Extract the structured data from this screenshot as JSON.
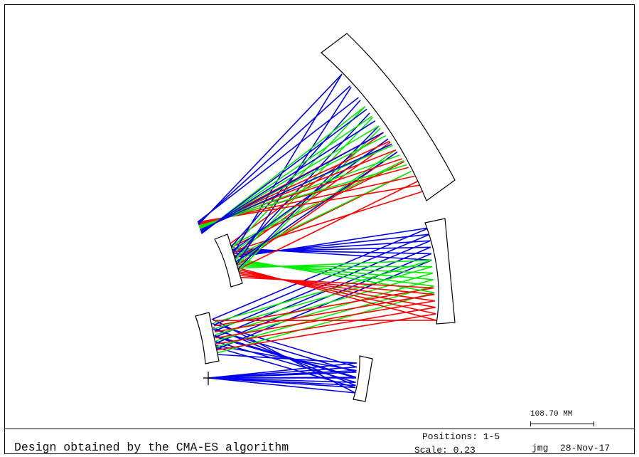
{
  "footer": {
    "title": "Design obtained by the CMA-ES algorithm",
    "positions": "Positions: 1-5",
    "scale": "Scale: 0.23",
    "author": "jmg",
    "date": "28-Nov-17"
  },
  "scale_bar": {
    "label": "108.70  MM"
  },
  "colors": {
    "ray_red": "#ff0000",
    "ray_green": "#00ee00",
    "ray_blue": "#0000ee",
    "outline": "#000000"
  }
}
